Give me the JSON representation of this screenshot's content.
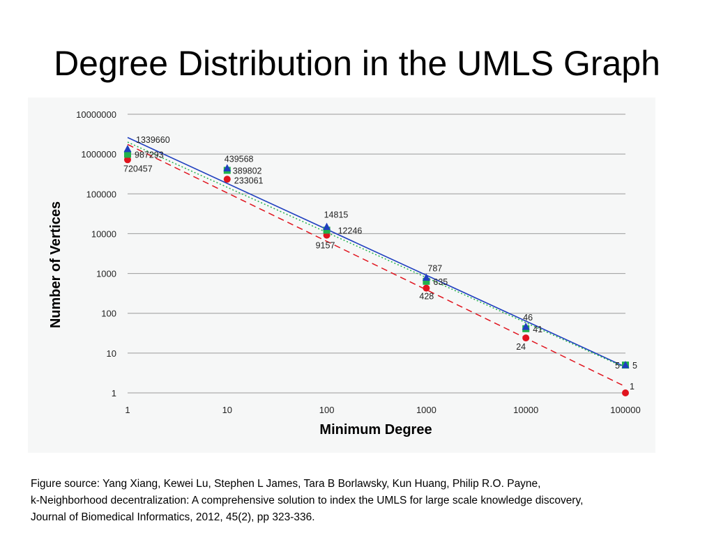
{
  "slide": {
    "title": "Degree Distribution in the UMLS Graph"
  },
  "caption": {
    "lines": [
      "Figure source:  Yang Xiang, Kewei Lu, Stephen L James, Tara B Borlawsky, Kun Huang, Philip R.O. Payne,",
      "k-Neighborhood decentralization: A comprehensive solution to index the UMLS for large scale knowledge discovery,",
      "Journal of Biomedical Informatics, 2012, 45(2), pp 323-336."
    ]
  },
  "chart_data": {
    "type": "scatter",
    "xlabel": "Minimum Degree",
    "ylabel": "Number of Vertices",
    "x_scale": "log",
    "y_scale": "log",
    "xlim": [
      1,
      100000
    ],
    "ylim": [
      1,
      10000000
    ],
    "x_ticks": [
      "1",
      "10",
      "100",
      "1000",
      "10000",
      "100000"
    ],
    "y_ticks": [
      "1",
      "10",
      "100",
      "1000",
      "10000",
      "100000",
      "1000000",
      "10000000"
    ],
    "grid": "horizontal",
    "x": [
      1,
      10,
      100,
      1000,
      10000,
      100000
    ],
    "series": [
      {
        "marker": "triangle",
        "color": "#1f3fbf",
        "trendline": "solid",
        "values": [
          1339660,
          439568,
          14815,
          787,
          46,
          5
        ],
        "labels": [
          "1339660",
          "439568",
          "14815",
          "787",
          "46",
          "5"
        ]
      },
      {
        "marker": "square",
        "color": "#22b14c",
        "trendline": "dotted",
        "values": [
          987293,
          389802,
          12246,
          635,
          41,
          5
        ],
        "labels": [
          "987293",
          "389802",
          "12246",
          "635",
          "41",
          "5"
        ]
      },
      {
        "marker": "circle",
        "color": "#e0141e",
        "trendline": "dashed",
        "values": [
          720457,
          233061,
          9157,
          428,
          24,
          1
        ],
        "labels": [
          "720457",
          "233061",
          "9157",
          "428",
          "24",
          "1"
        ]
      }
    ]
  }
}
